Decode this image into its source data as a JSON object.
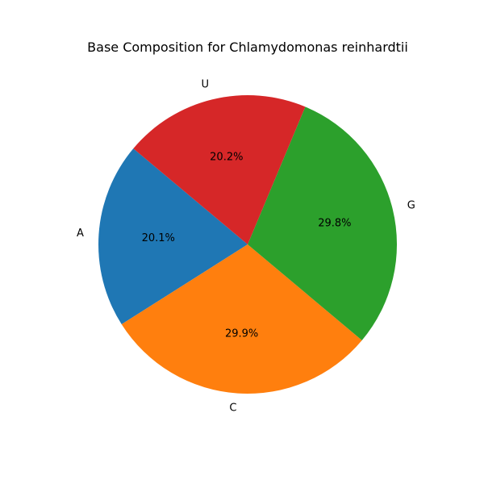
{
  "chart_data": {
    "type": "pie",
    "title": "Base Composition for Chlamydomonas reinhardtii",
    "labels": [
      "A",
      "C",
      "G",
      "U"
    ],
    "values": [
      20.1,
      29.9,
      29.8,
      20.2
    ],
    "value_labels": [
      "20.1%",
      "29.9%",
      "29.8%",
      "20.2%"
    ],
    "colors": [
      "#1f77b4",
      "#ff7f0e",
      "#2ca02c",
      "#d62728"
    ],
    "start_angle_deg": 140,
    "direction": "counterclockwise",
    "legend": "none"
  }
}
